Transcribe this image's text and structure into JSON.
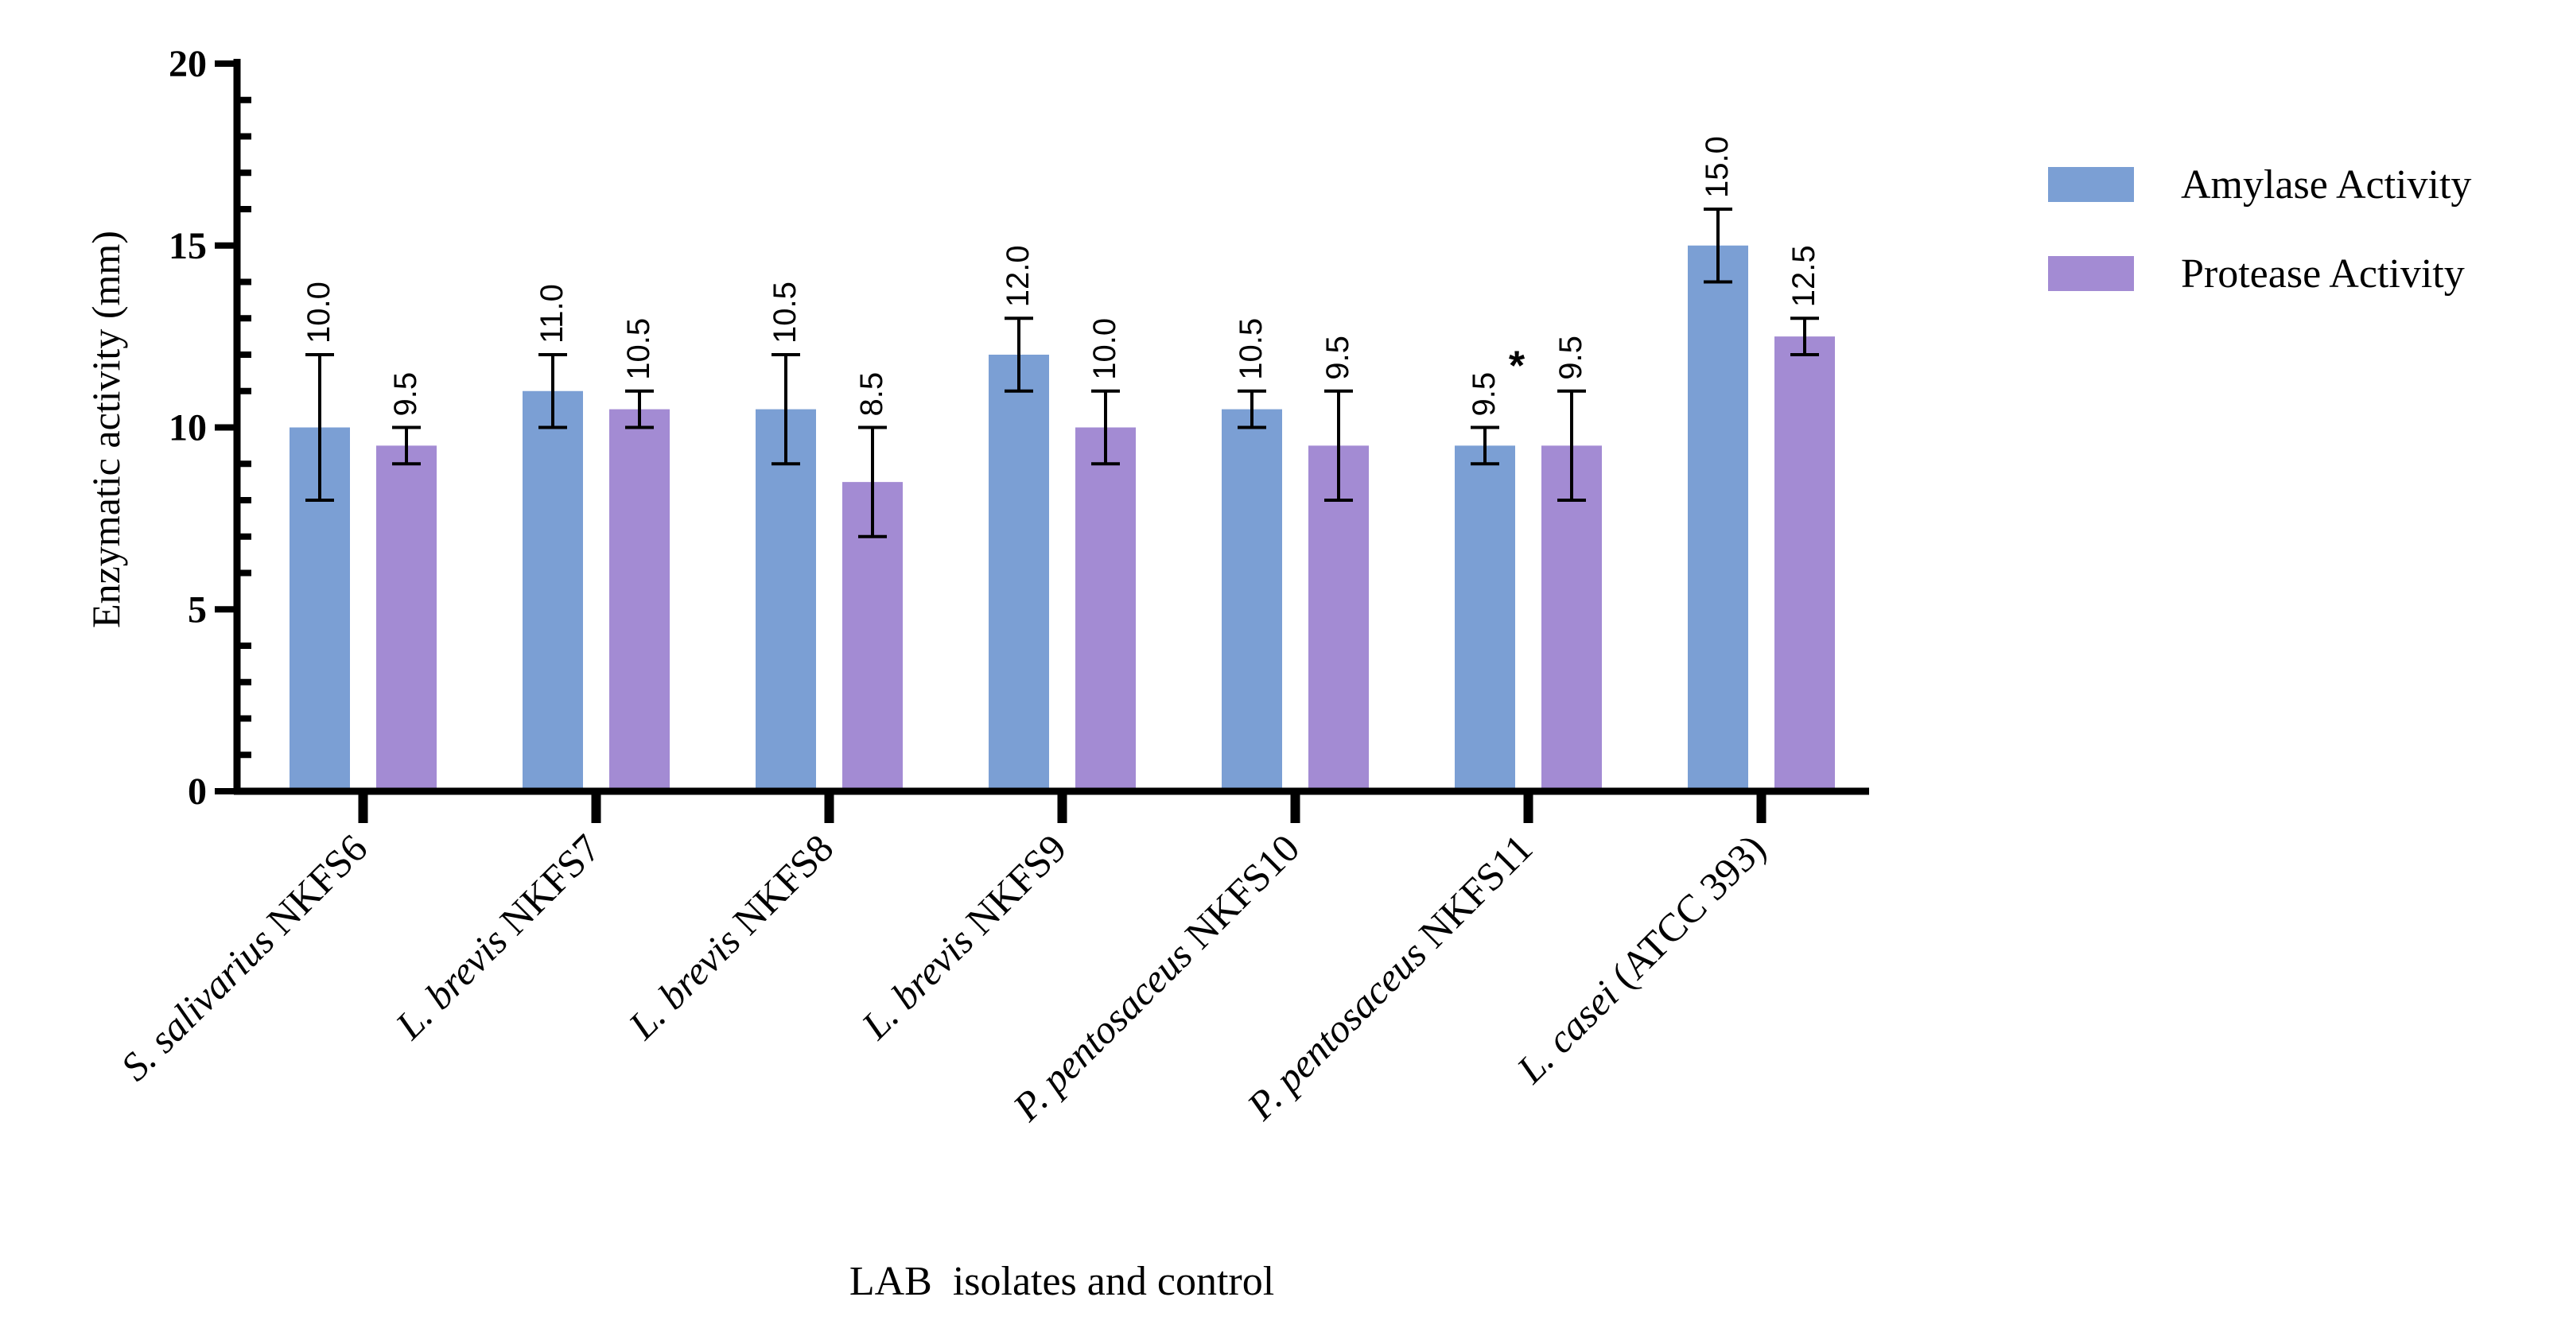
{
  "chart_data": {
    "type": "bar",
    "ylabel": "Enzymatic activity (mm)",
    "xlabel": "LAB  isolates and control",
    "ylim": [
      0,
      20
    ],
    "yticks": [
      "0",
      "5",
      "10",
      "15",
      "20"
    ],
    "legend_position": "top-right",
    "colors": {
      "Amylase Activity": "#7b9fd4",
      "Protease Activity": "#a38bd3",
      "axis": "#000000"
    },
    "categories": [
      {
        "italic": "S. salivarius",
        "rest": " NKFS6"
      },
      {
        "italic": "L. brevis",
        "rest": " NKFS7"
      },
      {
        "italic": "L. brevis",
        "rest": " NKFS8"
      },
      {
        "italic": "L. brevis",
        "rest": " NKFS9"
      },
      {
        "italic": "P. pentosaceus",
        "rest": " NKFS10"
      },
      {
        "italic": "P. pentosaceus",
        "rest": " NKFS11"
      },
      {
        "italic": "L. casei",
        "rest": " (ATCC 393)"
      }
    ],
    "series": [
      {
        "name": "Amylase Activity",
        "values": [
          10.0,
          11.0,
          10.5,
          12.0,
          10.5,
          9.5,
          15.0
        ],
        "errors": [
          2.0,
          1.0,
          1.5,
          1.0,
          0.5,
          0.5,
          1.0
        ],
        "labels": [
          "10.0",
          "11.0",
          "10.5",
          "12.0",
          "10.5",
          "9.5",
          "15.0"
        ]
      },
      {
        "name": "Protease Activity",
        "values": [
          9.5,
          10.5,
          8.5,
          10.0,
          9.5,
          9.5,
          12.5
        ],
        "errors": [
          0.5,
          0.5,
          1.5,
          1.0,
          1.5,
          1.5,
          0.5
        ],
        "labels": [
          "9.5",
          "10.5",
          "8.5",
          "10.0",
          "9.5",
          "9.5",
          "12.5"
        ]
      }
    ],
    "annotations": [
      {
        "text": "*",
        "category": 5,
        "series": 0
      }
    ]
  }
}
